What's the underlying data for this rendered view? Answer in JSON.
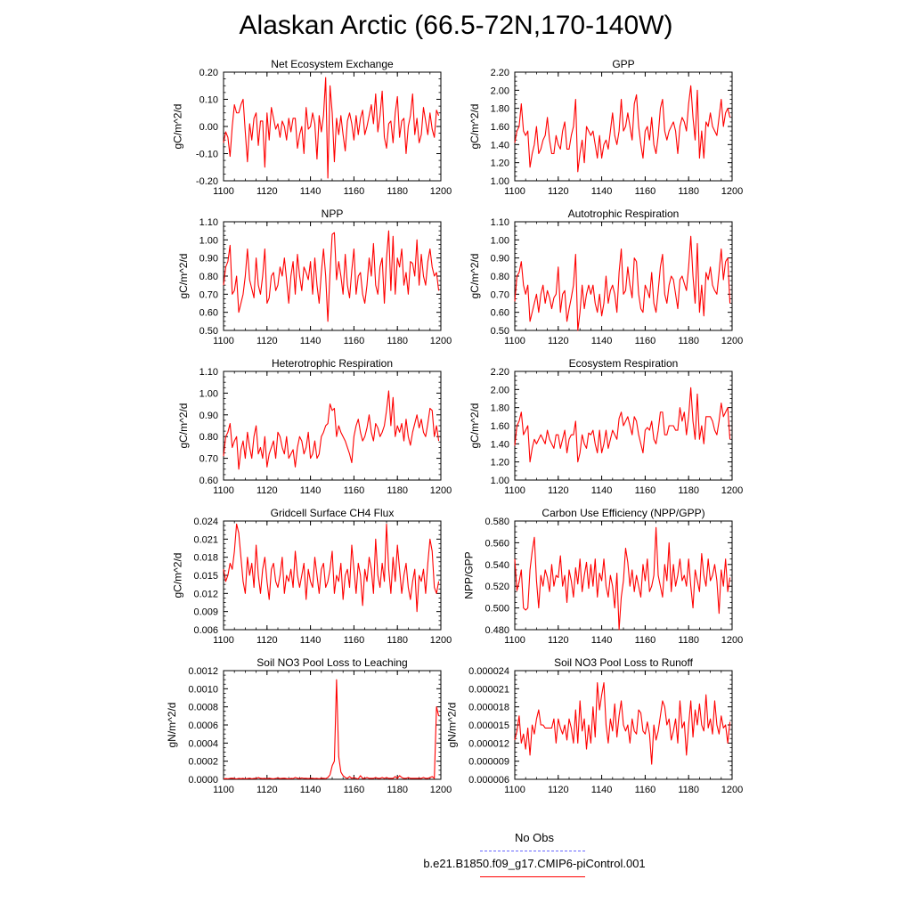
{
  "figure": {
    "title": "Alaskan Arctic (66.5-72N,170-140W)",
    "legend": [
      {
        "label": "No Obs",
        "color": "#6666ff",
        "dash": true
      },
      {
        "label": "b.e21.B1850.f09_g17.CMIP6-piControl.001",
        "color": "#ff0000",
        "dash": false
      }
    ],
    "line_color": "#ff0000"
  },
  "chart_data": [
    {
      "type": "line",
      "title": "Net Ecosystem Exchange",
      "ylabel": "gC/m^2/d",
      "xlim": [
        1100,
        1200
      ],
      "ylim": [
        -0.2,
        0.2
      ],
      "xticks": [
        "1100",
        "1120",
        "1140",
        "1160",
        "1180",
        "1200"
      ],
      "yticks": [
        "-0.20",
        "-0.10",
        "0.00",
        "0.10",
        "0.20"
      ],
      "x_start": 1100,
      "values": [
        -0.06,
        -0.02,
        -0.04,
        -0.11,
        0.0,
        0.08,
        0.05,
        0.05,
        0.08,
        0.1,
        -0.02,
        -0.13,
        0.01,
        -0.05,
        0.03,
        0.05,
        -0.07,
        0.02,
        0.02,
        -0.15,
        0.05,
        -0.05,
        0.07,
        0.03,
        -0.01,
        0.01,
        -0.04,
        0.02,
        0.0,
        -0.05,
        0.03,
        -0.02,
        0.03,
        0.03,
        -0.08,
        -0.03,
        0.0,
        -0.1,
        0.07,
        -0.01,
        0.0,
        0.05,
        0.01,
        -0.12,
        0.04,
        -0.02,
        0.04,
        0.18,
        -0.19,
        0.15,
        0.05,
        -0.13,
        0.03,
        -0.03,
        0.04,
        -0.03,
        -0.09,
        0.02,
        0.05,
        0.01,
        -0.05,
        0.04,
        -0.03,
        0.03,
        0.06,
        -0.03,
        0.0,
        0.04,
        0.08,
        0.01,
        0.12,
        -0.02,
        0.04,
        0.13,
        -0.04,
        -0.08,
        0.01,
        0.02,
        -0.06,
        0.05,
        0.11,
        -0.04,
        0.02,
        0.03,
        -0.1,
        0.0,
        0.04,
        0.12,
        -0.03,
        0.03,
        -0.06,
        -0.03,
        0.07,
        0.02,
        -0.03,
        0.05,
        -0.01,
        -0.04,
        0.06,
        0.04
      ]
    },
    {
      "type": "line",
      "title": "GPP",
      "ylabel": "gC/m^2/d",
      "xlim": [
        1100,
        1200
      ],
      "ylim": [
        1.0,
        2.2
      ],
      "xticks": [
        "1100",
        "1120",
        "1140",
        "1160",
        "1180",
        "1200"
      ],
      "yticks": [
        "1.00",
        "1.20",
        "1.40",
        "1.60",
        "1.80",
        "2.00",
        "2.20"
      ],
      "x_start": 1100,
      "values": [
        1.42,
        1.55,
        1.6,
        1.85,
        1.55,
        1.5,
        1.55,
        1.15,
        1.3,
        1.4,
        1.6,
        1.3,
        1.35,
        1.45,
        1.5,
        1.7,
        1.45,
        1.3,
        1.3,
        1.5,
        1.4,
        1.35,
        1.55,
        1.65,
        1.35,
        1.35,
        1.5,
        1.6,
        1.9,
        1.1,
        1.3,
        1.45,
        1.2,
        1.6,
        1.55,
        1.5,
        1.55,
        1.4,
        1.25,
        1.5,
        1.25,
        1.4,
        1.45,
        1.35,
        1.55,
        1.75,
        1.5,
        1.4,
        1.55,
        1.9,
        1.55,
        1.6,
        1.75,
        1.6,
        1.45,
        1.85,
        1.95,
        1.6,
        1.4,
        1.25,
        1.55,
        1.6,
        1.45,
        1.7,
        1.4,
        1.3,
        1.5,
        1.8,
        1.9,
        1.55,
        1.45,
        1.55,
        1.6,
        1.65,
        1.55,
        1.3,
        1.6,
        1.7,
        1.65,
        1.55,
        1.85,
        2.05,
        1.7,
        1.45,
        2.0,
        1.25,
        1.55,
        1.25,
        1.65,
        1.6,
        1.75,
        1.6,
        1.55,
        1.5,
        1.7,
        1.9,
        1.6,
        1.75,
        1.8,
        1.7
      ]
    },
    {
      "type": "line",
      "title": "NPP",
      "ylabel": "gC/m^2/d",
      "xlim": [
        1100,
        1200
      ],
      "ylim": [
        0.5,
        1.1
      ],
      "xticks": [
        "1100",
        "1120",
        "1140",
        "1160",
        "1180",
        "1200"
      ],
      "yticks": [
        "0.50",
        "0.60",
        "0.70",
        "0.80",
        "0.90",
        "1.00",
        "1.10"
      ],
      "x_start": 1100,
      "values": [
        0.75,
        0.85,
        0.88,
        0.97,
        0.7,
        0.72,
        0.8,
        0.6,
        0.65,
        0.7,
        0.8,
        0.95,
        0.78,
        0.73,
        0.68,
        0.9,
        0.75,
        0.7,
        0.8,
        0.95,
        0.65,
        0.68,
        0.8,
        0.82,
        0.72,
        0.75,
        0.85,
        0.8,
        0.9,
        0.78,
        0.65,
        0.8,
        0.88,
        0.7,
        0.92,
        0.8,
        0.72,
        0.85,
        0.82,
        0.78,
        0.88,
        0.7,
        0.9,
        0.75,
        0.65,
        0.82,
        0.95,
        0.8,
        0.55,
        0.82,
        1.03,
        1.04,
        0.78,
        0.88,
        0.8,
        0.7,
        0.92,
        0.75,
        0.68,
        0.83,
        0.95,
        0.7,
        0.8,
        0.82,
        0.7,
        0.65,
        0.75,
        0.9,
        0.8,
        0.98,
        0.75,
        0.7,
        0.85,
        0.9,
        0.65,
        0.9,
        1.05,
        0.72,
        1.02,
        0.7,
        0.9,
        0.85,
        0.95,
        0.75,
        0.82,
        0.7,
        0.88,
        0.87,
        0.8,
        1.0,
        0.75,
        0.92,
        0.8,
        0.75,
        0.88,
        0.95,
        0.85,
        0.8,
        0.82,
        0.72
      ]
    },
    {
      "type": "line",
      "title": "Autotrophic Respiration",
      "ylabel": "gC/m^2/d",
      "xlim": [
        1100,
        1200
      ],
      "ylim": [
        0.5,
        1.1
      ],
      "xticks": [
        "1100",
        "1120",
        "1140",
        "1160",
        "1180",
        "1200"
      ],
      "yticks": [
        "0.50",
        "0.60",
        "0.70",
        "0.80",
        "0.90",
        "1.00",
        "1.10"
      ],
      "x_start": 1100,
      "values": [
        0.66,
        0.8,
        0.82,
        0.88,
        0.75,
        0.7,
        0.75,
        0.55,
        0.6,
        0.65,
        0.7,
        0.6,
        0.7,
        0.75,
        0.65,
        0.72,
        0.68,
        0.62,
        0.68,
        0.7,
        0.85,
        0.6,
        0.7,
        0.72,
        0.55,
        0.62,
        0.68,
        0.75,
        0.92,
        0.5,
        0.6,
        0.75,
        0.62,
        0.7,
        0.75,
        0.7,
        0.75,
        0.65,
        0.6,
        0.7,
        0.58,
        0.65,
        0.8,
        0.65,
        0.72,
        0.75,
        0.7,
        0.6,
        0.82,
        0.95,
        0.7,
        0.72,
        0.85,
        0.75,
        0.68,
        0.9,
        0.88,
        0.7,
        0.62,
        0.6,
        0.75,
        0.72,
        0.68,
        0.82,
        0.65,
        0.6,
        0.72,
        0.85,
        0.92,
        0.7,
        0.65,
        0.75,
        0.8,
        0.78,
        0.7,
        0.62,
        0.78,
        0.8,
        0.76,
        0.72,
        0.85,
        1.02,
        0.8,
        0.65,
        0.98,
        0.6,
        0.75,
        0.58,
        0.82,
        0.78,
        0.85,
        0.75,
        0.72,
        0.7,
        0.82,
        0.95,
        0.78,
        0.88,
        0.9,
        0.65
      ]
    },
    {
      "type": "line",
      "title": "Heterotrophic Respiration",
      "ylabel": "gC/m^2/d",
      "xlim": [
        1100,
        1200
      ],
      "ylim": [
        0.6,
        1.1
      ],
      "xticks": [
        "1100",
        "1120",
        "1140",
        "1160",
        "1180",
        "1200"
      ],
      "yticks": [
        "0.60",
        "0.70",
        "0.80",
        "0.90",
        "1.00",
        "1.10"
      ],
      "x_start": 1100,
      "values": [
        0.71,
        0.8,
        0.82,
        0.86,
        0.75,
        0.78,
        0.8,
        0.65,
        0.74,
        0.78,
        0.7,
        0.82,
        0.75,
        0.7,
        0.8,
        0.85,
        0.72,
        0.75,
        0.7,
        0.8,
        0.66,
        0.72,
        0.75,
        0.78,
        0.7,
        0.82,
        0.8,
        0.75,
        0.72,
        0.8,
        0.7,
        0.72,
        0.74,
        0.66,
        0.75,
        0.8,
        0.78,
        0.72,
        0.75,
        0.82,
        0.7,
        0.72,
        0.78,
        0.7,
        0.72,
        0.8,
        0.82,
        0.85,
        0.86,
        0.95,
        0.92,
        0.93,
        0.8,
        0.85,
        0.82,
        0.8,
        0.78,
        0.75,
        0.72,
        0.68,
        0.8,
        0.85,
        0.88,
        0.82,
        0.78,
        0.8,
        0.84,
        0.9,
        0.82,
        0.78,
        0.86,
        0.84,
        0.8,
        0.82,
        0.85,
        0.92,
        1.01,
        0.85,
        0.98,
        0.8,
        0.85,
        0.82,
        0.86,
        0.78,
        0.88,
        0.8,
        0.76,
        0.82,
        0.86,
        0.9,
        0.84,
        0.88,
        0.82,
        0.8,
        0.86,
        0.93,
        0.92,
        0.8,
        0.85,
        0.78
      ]
    },
    {
      "type": "line",
      "title": "Ecosystem Respiration",
      "ylabel": "gC/m^2/d",
      "xlim": [
        1100,
        1200
      ],
      "ylim": [
        1.0,
        2.2
      ],
      "xticks": [
        "1100",
        "1120",
        "1140",
        "1160",
        "1180",
        "1200"
      ],
      "yticks": [
        "1.00",
        "1.20",
        "1.40",
        "1.60",
        "1.80",
        "2.00",
        "2.20"
      ],
      "x_start": 1100,
      "values": [
        1.38,
        1.6,
        1.65,
        1.75,
        1.5,
        1.55,
        1.6,
        1.2,
        1.35,
        1.45,
        1.4,
        1.45,
        1.5,
        1.45,
        1.4,
        1.55,
        1.45,
        1.4,
        1.35,
        1.5,
        1.5,
        1.35,
        1.45,
        1.55,
        1.3,
        1.45,
        1.5,
        1.5,
        1.65,
        1.2,
        1.3,
        1.5,
        1.4,
        1.35,
        1.52,
        1.5,
        1.55,
        1.4,
        1.3,
        1.55,
        1.3,
        1.4,
        1.55,
        1.35,
        1.45,
        1.55,
        1.5,
        1.45,
        1.68,
        1.75,
        1.6,
        1.65,
        1.7,
        1.6,
        1.5,
        1.7,
        1.65,
        1.5,
        1.4,
        1.3,
        1.55,
        1.58,
        1.55,
        1.65,
        1.45,
        1.4,
        1.55,
        1.75,
        1.75,
        1.5,
        1.5,
        1.6,
        1.6,
        1.6,
        1.55,
        1.55,
        1.8,
        1.65,
        1.75,
        1.5,
        1.7,
        2.02,
        1.65,
        1.45,
        1.95,
        1.45,
        1.6,
        1.4,
        1.7,
        1.7,
        1.7,
        1.65,
        1.55,
        1.5,
        1.65,
        1.85,
        1.7,
        1.75,
        1.8,
        1.45
      ]
    },
    {
      "type": "line",
      "title": "Gridcell Surface CH4 Flux",
      "ylabel": "gC/m^2/d",
      "xlim": [
        1100,
        1200
      ],
      "ylim": [
        0.006,
        0.024
      ],
      "xticks": [
        "1100",
        "1120",
        "1140",
        "1160",
        "1180",
        "1200"
      ],
      "yticks": [
        "0.006",
        "0.009",
        "0.012",
        "0.015",
        "0.018",
        "0.021",
        "0.024"
      ],
      "x_start": 1100,
      "values": [
        0.016,
        0.014,
        0.015,
        0.017,
        0.016,
        0.019,
        0.0235,
        0.022,
        0.018,
        0.014,
        0.012,
        0.018,
        0.015,
        0.017,
        0.013,
        0.02,
        0.015,
        0.012,
        0.016,
        0.018,
        0.014,
        0.011,
        0.016,
        0.017,
        0.014,
        0.013,
        0.015,
        0.018,
        0.012,
        0.015,
        0.014,
        0.016,
        0.013,
        0.019,
        0.015,
        0.013,
        0.015,
        0.017,
        0.011,
        0.016,
        0.014,
        0.013,
        0.018,
        0.015,
        0.012,
        0.016,
        0.017,
        0.013,
        0.014,
        0.016,
        0.019,
        0.012,
        0.015,
        0.014,
        0.017,
        0.011,
        0.015,
        0.016,
        0.013,
        0.02,
        0.016,
        0.012,
        0.017,
        0.015,
        0.01,
        0.016,
        0.014,
        0.018,
        0.016,
        0.012,
        0.021,
        0.015,
        0.013,
        0.017,
        0.014,
        0.0235,
        0.016,
        0.012,
        0.018,
        0.014,
        0.02,
        0.016,
        0.012,
        0.015,
        0.017,
        0.013,
        0.011,
        0.014,
        0.016,
        0.009,
        0.015,
        0.014,
        0.016,
        0.012,
        0.017,
        0.021,
        0.019,
        0.013,
        0.012,
        0.014
      ]
    },
    {
      "type": "line",
      "title": "Carbon Use Efficiency (NPP/GPP)",
      "ylabel": "NPP/GPP",
      "xlim": [
        1100,
        1200
      ],
      "ylim": [
        0.48,
        0.58
      ],
      "xticks": [
        "1100",
        "1120",
        "1140",
        "1160",
        "1180",
        "1200"
      ],
      "yticks": [
        "0.480",
        "0.500",
        "0.520",
        "0.540",
        "0.560",
        "0.580"
      ],
      "x_start": 1100,
      "values": [
        0.545,
        0.516,
        0.524,
        0.535,
        0.5,
        0.498,
        0.5,
        0.535,
        0.552,
        0.565,
        0.525,
        0.5,
        0.53,
        0.52,
        0.535,
        0.528,
        0.515,
        0.54,
        0.52,
        0.53,
        0.528,
        0.548,
        0.52,
        0.53,
        0.505,
        0.535,
        0.525,
        0.51,
        0.537,
        0.522,
        0.545,
        0.515,
        0.53,
        0.542,
        0.518,
        0.54,
        0.52,
        0.545,
        0.51,
        0.532,
        0.525,
        0.545,
        0.52,
        0.51,
        0.53,
        0.52,
        0.5,
        0.532,
        0.48,
        0.51,
        0.525,
        0.555,
        0.542,
        0.52,
        0.535,
        0.515,
        0.53,
        0.52,
        0.51,
        0.54,
        0.525,
        0.545,
        0.515,
        0.52,
        0.53,
        0.574,
        0.53,
        0.52,
        0.51,
        0.54,
        0.525,
        0.56,
        0.515,
        0.54,
        0.52,
        0.53,
        0.545,
        0.525,
        0.53,
        0.52,
        0.545,
        0.52,
        0.5,
        0.535,
        0.525,
        0.515,
        0.55,
        0.53,
        0.52,
        0.545,
        0.525,
        0.53,
        0.54,
        0.525,
        0.495,
        0.535,
        0.52,
        0.545,
        0.515,
        0.528
      ]
    },
    {
      "type": "line",
      "title": "Soil NO3 Pool Loss to Leaching",
      "ylabel": "gN/m^2/d",
      "xlim": [
        1100,
        1200
      ],
      "ylim": [
        0.0,
        0.0012
      ],
      "xticks": [
        "1100",
        "1120",
        "1140",
        "1160",
        "1180",
        "1200"
      ],
      "yticks": [
        "0.0000",
        "0.0002",
        "0.0004",
        "0.0006",
        "0.0008",
        "0.0010",
        "0.0012"
      ],
      "x_start": 1100,
      "values": [
        5e-06,
        8e-06,
        6e-06,
        1e-05,
        1.2e-05,
        8e-06,
        5e-06,
        1e-05,
        7e-06,
        1e-05,
        6e-06,
        8e-06,
        1.2e-05,
        6e-06,
        1e-05,
        8e-06,
        2e-05,
        1e-05,
        8e-06,
        1e-05,
        6e-06,
        1.2e-05,
        8e-06,
        6e-06,
        1e-05,
        1.5e-05,
        8e-06,
        1e-05,
        1.2e-05,
        8e-06,
        5e-06,
        1e-05,
        8e-06,
        2e-05,
        1.2e-05,
        8e-06,
        1.5e-05,
        1e-05,
        1e-05,
        8e-06,
        1.2e-05,
        1e-05,
        8e-06,
        1e-05,
        6e-06,
        1.2e-05,
        1e-05,
        8e-06,
        2e-05,
        5e-05,
        0.00015,
        0.0002,
        0.0011,
        0.00025,
        8e-05,
        4e-05,
        2e-05,
        1e-05,
        3e-05,
        1e-05,
        2e-05,
        1e-05,
        5e-06,
        4e-05,
        1e-05,
        1e-05,
        2e-05,
        1e-05,
        1e-05,
        1e-05,
        2e-05,
        1e-05,
        1e-05,
        2e-05,
        1e-05,
        2e-05,
        1e-05,
        1e-05,
        1e-05,
        3e-05,
        1e-05,
        4e-05,
        2e-05,
        1e-05,
        1e-05,
        2e-05,
        1e-05,
        1e-05,
        1e-05,
        1e-05,
        1e-05,
        1e-05,
        2e-05,
        1e-05,
        1e-05,
        2e-05,
        3e-05,
        1e-05,
        0.0008,
        0.0007
      ]
    },
    {
      "type": "line",
      "title": "Soil NO3 Pool Loss to Runoff",
      "ylabel": "gN/m^2/d",
      "xlim": [
        1100,
        1200
      ],
      "ylim": [
        6e-06,
        2.4e-05
      ],
      "xticks": [
        "1100",
        "1120",
        "1140",
        "1160",
        "1180",
        "1200"
      ],
      "yticks": [
        "0.000006",
        "0.000009",
        "0.000012",
        "0.000015",
        "0.000018",
        "0.000021",
        "0.000024"
      ],
      "x_start": 1100,
      "values": [
        1.25e-05,
        1.4e-05,
        1.65e-05,
        1.2e-05,
        1.35e-05,
        1.1e-05,
        1.45e-05,
        1e-05,
        1.5e-05,
        1.35e-05,
        1.6e-05,
        1.75e-05,
        1.5e-05,
        1.5e-05,
        1.45e-05,
        1.45e-05,
        1.45e-05,
        1.45e-05,
        1.6e-05,
        1.2e-05,
        1.6e-05,
        1.45e-05,
        1.35e-05,
        1.5e-05,
        1.25e-05,
        1.6e-05,
        1.45e-05,
        1.2e-05,
        1.75e-05,
        1.2e-05,
        1.9e-05,
        1.4e-05,
        1.6e-05,
        1.1e-05,
        1.5e-05,
        1.2e-05,
        1.8e-05,
        1.3e-05,
        2.2e-05,
        1.75e-05,
        2e-05,
        2.2e-05,
        1.5e-05,
        1.2e-05,
        1.6e-05,
        1.4e-05,
        1.85e-05,
        1.3e-05,
        1.65e-05,
        1.9e-05,
        1.5e-05,
        1.4e-05,
        1.5e-05,
        1.2e-05,
        1.6e-05,
        1.4e-05,
        1.35e-05,
        1.75e-05,
        1.7e-05,
        1.4e-05,
        1.35e-05,
        1.55e-05,
        1.35e-05,
        8.5e-06,
        1.5e-05,
        1.25e-05,
        1.4e-05,
        1.65e-05,
        1.9e-05,
        1.8e-05,
        1.5e-05,
        1.6e-05,
        1.25e-05,
        1.4e-05,
        1.6e-05,
        1.2e-05,
        1.9e-05,
        1.45e-05,
        1.55e-05,
        1e-05,
        1.5e-05,
        1.9e-05,
        1.3e-05,
        1.75e-05,
        1.5e-05,
        1.85e-05,
        1.5e-05,
        1.4e-05,
        2e-05,
        1.45e-05,
        1.6e-05,
        1.35e-05,
        1.9e-05,
        1.5e-05,
        1.35e-05,
        1.65e-05,
        1.45e-05,
        1.5e-05,
        1.2e-05,
        1.55e-05
      ]
    }
  ]
}
